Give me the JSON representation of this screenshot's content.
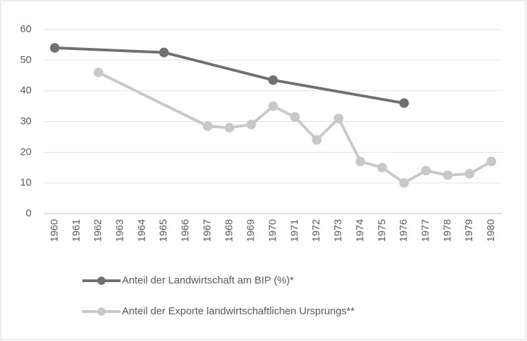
{
  "chart_data": {
    "type": "line",
    "categories": [
      "1960",
      "1961",
      "1962",
      "1963",
      "1964",
      "1965",
      "1966",
      "1967",
      "1968",
      "1969",
      "1970",
      "1971",
      "1972",
      "1973",
      "1974",
      "1975",
      "1976",
      "1977",
      "1978",
      "1979",
      "1980"
    ],
    "series": [
      {
        "name": "Anteil der Landwirtschaft am BIP (%)*",
        "color": "#707070",
        "x": [
          "1960",
          "1965",
          "1970",
          "1976"
        ],
        "values": [
          54,
          52.5,
          43.5,
          36
        ]
      },
      {
        "name": "Anteil der Exporte landwirtschaftlichen Ursprungs**",
        "color": "#c8c8c8",
        "x": [
          "1962",
          "1967",
          "1968",
          "1969",
          "1970",
          "1971",
          "1972",
          "1973",
          "1974",
          "1975",
          "1976",
          "1977",
          "1978",
          "1979",
          "1980"
        ],
        "values": [
          46,
          28.5,
          28,
          29,
          35,
          31.5,
          24,
          31,
          17,
          15,
          10,
          14,
          12.5,
          13,
          17
        ]
      }
    ],
    "ylim": [
      0,
      60
    ],
    "yticks": [
      0,
      10,
      20,
      30,
      40,
      50,
      60
    ],
    "grid": true,
    "legend": "bottom"
  }
}
